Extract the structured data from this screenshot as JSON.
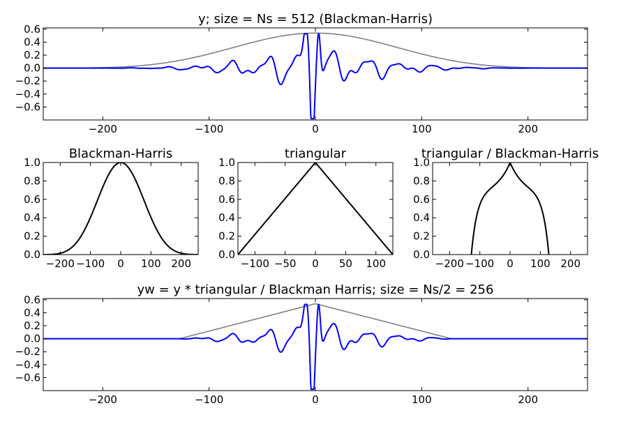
{
  "chart_data": [
    {
      "type": "line",
      "id": "top",
      "title": "y; size = Ns = 512 (Blackman-Harris)",
      "xlim": [
        -256,
        256
      ],
      "ylim": [
        -0.8,
        0.62
      ],
      "xticks": [
        -200,
        -100,
        0,
        100,
        200
      ],
      "xtick_labels": [
        "−200",
        "−100",
        "0",
        "100",
        "200"
      ],
      "yticks": [
        0.6,
        0.4,
        0.2,
        0.0,
        -0.2,
        -0.4,
        -0.6
      ],
      "ytick_labels": [
        "0.6",
        "0.4",
        "0.2",
        "0.0",
        "−0.2",
        "−0.4",
        "−0.6"
      ],
      "series": [
        {
          "role": "envelope",
          "kind": "blackman-harris",
          "amplitude": 0.54,
          "half_width": 256,
          "color": "#808080",
          "x": [
            -256,
            -220,
            -200,
            -180,
            -160,
            -140,
            -120,
            -100,
            -80,
            -60,
            -40,
            -20,
            0,
            20,
            40,
            60,
            80,
            100,
            120,
            140,
            160,
            180,
            200,
            220,
            256
          ],
          "values": [
            0.0,
            0.002,
            0.006,
            0.017,
            0.039,
            0.075,
            0.128,
            0.194,
            0.268,
            0.359,
            0.436,
            0.511,
            0.54,
            0.511,
            0.436,
            0.359,
            0.268,
            0.194,
            0.128,
            0.075,
            0.039,
            0.017,
            0.006,
            0.002,
            0.0
          ]
        },
        {
          "role": "signal",
          "kind": "windowed-signal",
          "amplitude": 0.54,
          "half_width": 256,
          "color": "#0000ff",
          "x": [
            -256,
            -200,
            -150,
            -120,
            -110,
            -104,
            -96,
            -90,
            -80,
            -72,
            -66,
            -60,
            -50,
            -44,
            -36,
            -30,
            -20,
            -14,
            -6,
            0,
            3,
            10,
            16,
            23,
            30,
            40,
            50,
            56,
            66,
            76,
            90,
            100,
            104,
            110,
            120,
            140,
            180,
            256
          ],
          "values": [
            0.0,
            0.0,
            0.0,
            -0.04,
            0.1,
            -0.28,
            0.24,
            -0.1,
            0.1,
            -0.06,
            0.16,
            -0.12,
            0.13,
            -0.22,
            0.05,
            -0.18,
            0.05,
            -0.12,
            0.38,
            -0.78,
            0.52,
            -0.14,
            0.15,
            0.3,
            -0.16,
            0.2,
            -0.24,
            0.06,
            -0.05,
            0.16,
            -0.08,
            -0.3,
            0.23,
            -0.08,
            0.08,
            0.02,
            0.0,
            0.0
          ]
        }
      ]
    },
    {
      "type": "line",
      "id": "bh",
      "title": "Blackman-Harris",
      "xlim": [
        -256,
        256
      ],
      "ylim": [
        0,
        1
      ],
      "xticks": [
        -200,
        -100,
        0,
        100,
        200
      ],
      "xtick_labels": [
        "−200",
        "−100",
        "0",
        "100",
        "200"
      ],
      "yticks": [
        0.0,
        0.2,
        0.4,
        0.6,
        0.8,
        1.0
      ],
      "ytick_labels": [
        "0.0",
        "0.2",
        "0.4",
        "0.6",
        "0.8",
        "1.0"
      ],
      "series": [
        {
          "kind": "blackman-harris",
          "amplitude": 1.0,
          "half_width": 256,
          "color": "#000000",
          "x": [
            -256,
            -200,
            -150,
            -100,
            -50,
            0,
            50,
            100,
            150,
            200,
            256
          ],
          "values": [
            0.0,
            0.01,
            0.1,
            0.35,
            0.8,
            1.0,
            0.8,
            0.35,
            0.1,
            0.01,
            0.0
          ]
        }
      ]
    },
    {
      "type": "line",
      "id": "tri",
      "title": "triangular",
      "xlim": [
        -128,
        128
      ],
      "ylim": [
        0,
        1
      ],
      "xticks": [
        -100,
        -50,
        0,
        50,
        100
      ],
      "xtick_labels": [
        "−100",
        "−50",
        "0",
        "50",
        "100"
      ],
      "yticks": [
        0.0,
        0.2,
        0.4,
        0.6,
        0.8,
        1.0
      ],
      "ytick_labels": [
        "0.0",
        "0.2",
        "0.4",
        "0.6",
        "0.8",
        "1.0"
      ],
      "series": [
        {
          "kind": "triangular",
          "amplitude": 1.0,
          "half_width": 128,
          "color": "#000000",
          "x": [
            -128,
            0,
            128
          ],
          "values": [
            0.0,
            1.0,
            0.0
          ]
        }
      ]
    },
    {
      "type": "line",
      "id": "ratio",
      "title": "triangular / Blackman-Harris",
      "xlim": [
        -256,
        256
      ],
      "ylim": [
        0,
        1
      ],
      "xticks": [
        -200,
        -100,
        0,
        100,
        200
      ],
      "xtick_labels": [
        "−200",
        "−100",
        "0",
        "100",
        "200"
      ],
      "yticks": [
        0.0,
        0.2,
        0.4,
        0.6,
        0.8,
        1.0
      ],
      "ytick_labels": [
        "0.0",
        "0.2",
        "0.4",
        "0.6",
        "0.8",
        "1.0"
      ],
      "series": [
        {
          "kind": "ratio",
          "amplitude": 1.0,
          "half_width": 128,
          "color": "#000000",
          "x": [
            -128,
            -120,
            -100,
            -50,
            -20,
            0,
            20,
            50,
            100,
            120,
            128
          ],
          "values": [
            0.0,
            0.4,
            0.6,
            0.72,
            0.8,
            1.0,
            0.8,
            0.72,
            0.6,
            0.4,
            0.0
          ]
        }
      ]
    },
    {
      "type": "line",
      "id": "bottom",
      "title": "yw = y * triangular / Blackman Harris; size = Ns/2 = 256",
      "xlim": [
        -256,
        256
      ],
      "ylim": [
        -0.8,
        0.62
      ],
      "xticks": [
        -200,
        -100,
        0,
        100,
        200
      ],
      "xtick_labels": [
        "−200",
        "−100",
        "0",
        "100",
        "200"
      ],
      "yticks": [
        0.6,
        0.4,
        0.2,
        0.0,
        -0.2,
        -0.4,
        -0.6
      ],
      "ytick_labels": [
        "0.6",
        "0.4",
        "0.2",
        "0.0",
        "−0.2",
        "−0.4",
        "−0.6"
      ],
      "series": [
        {
          "role": "envelope",
          "kind": "triangular",
          "amplitude": 0.54,
          "half_width": 128,
          "color": "#808080",
          "x": [
            -256,
            -128,
            0,
            128,
            256
          ],
          "values": [
            0.0,
            0.0,
            0.54,
            0.0,
            0.0
          ]
        },
        {
          "role": "signal",
          "kind": "tapered-signal",
          "amplitude": 0.54,
          "half_width": 128,
          "color": "#0000ff",
          "x": [
            -256,
            -130,
            -110,
            -104,
            -96,
            -90,
            -80,
            -72,
            -66,
            -60,
            -50,
            -44,
            -36,
            -30,
            -20,
            -14,
            -6,
            0,
            3,
            10,
            16,
            23,
            30,
            40,
            50,
            56,
            66,
            76,
            90,
            100,
            104,
            110,
            120,
            130,
            256
          ],
          "values": [
            0.0,
            0.0,
            0.04,
            -0.13,
            0.14,
            -0.06,
            0.07,
            -0.04,
            0.12,
            -0.09,
            0.1,
            -0.18,
            0.04,
            -0.16,
            0.05,
            -0.11,
            0.37,
            -0.78,
            0.52,
            -0.13,
            0.13,
            0.26,
            -0.13,
            0.15,
            -0.17,
            0.04,
            -0.03,
            0.08,
            -0.03,
            -0.12,
            0.06,
            -0.01,
            0.02,
            0.0,
            0.0
          ]
        }
      ]
    }
  ]
}
